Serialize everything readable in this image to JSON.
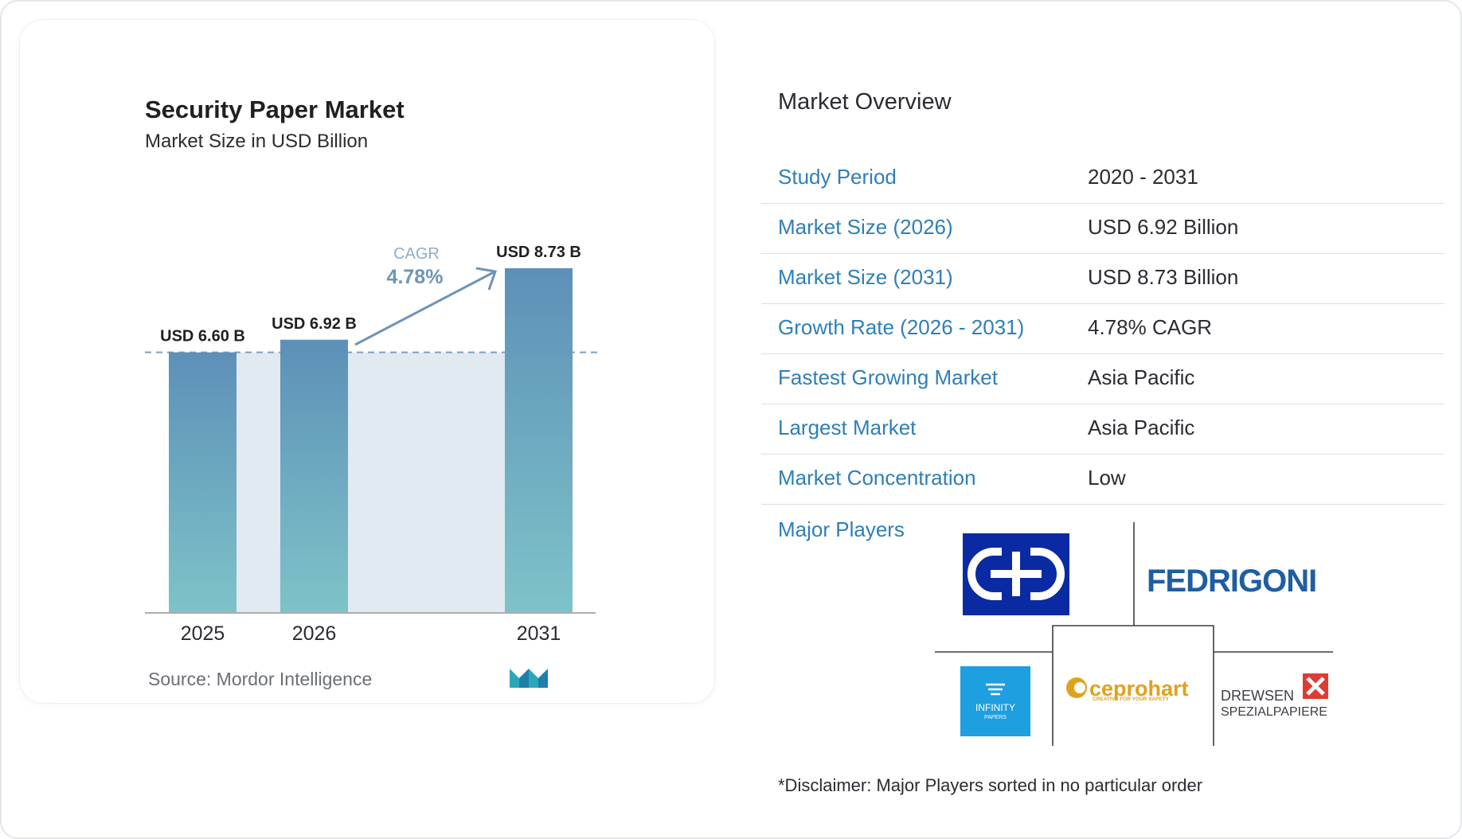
{
  "chart_data": {
    "type": "bar",
    "title": "Security Paper Market",
    "subtitle": "Market Size in USD Billion",
    "categories": [
      "2025",
      "2026",
      "2031"
    ],
    "values": [
      6.6,
      6.92,
      8.73
    ],
    "data_labels": [
      "USD 6.60 B",
      "USD 6.92 B",
      "USD 8.73 B"
    ],
    "ylim": [
      0,
      8.73
    ],
    "annotation": {
      "label": "CAGR",
      "value": "4.78%"
    },
    "grid": false,
    "bar_color_top": "#5d90b8",
    "bar_color_bottom": "#7ec3c8"
  },
  "source": "Source:  Mordor Intelligence",
  "overview": {
    "title": "Market Overview",
    "rows": [
      {
        "label": "Study Period",
        "value": "2020 - 2031"
      },
      {
        "label": "Market Size (2026)",
        "value": "USD 6.92 Billion"
      },
      {
        "label": "Market Size (2031)",
        "value": "USD 8.73 Billion"
      },
      {
        "label": "Growth Rate (2026 - 2031)",
        "value": "4.78% CAGR"
      },
      {
        "label": "Fastest Growing Market",
        "value": "Asia Pacific"
      },
      {
        "label": "Largest Market",
        "value": "Asia Pacific"
      },
      {
        "label": "Market Concentration",
        "value": "Low"
      }
    ],
    "players_label": "Major Players",
    "players": [
      "Giesecke+Devrient",
      "FEDRIGONI",
      "INFINITY PAPERS",
      "ceprohart",
      "DREWSEN SPEZIALPAPIERE"
    ],
    "disclaimer": "*Disclaimer: Major Players sorted in no particular order"
  },
  "logo_text": {
    "fedrigoni": "FEDRIGONI",
    "infinity": "INFINITY",
    "infinity_sub": "PAPERS",
    "ceprohart": "ceprohart",
    "ceprohart_tag": "CREATIVE FOR YOUR SAFETY",
    "drewsen": "DREWSEN",
    "drewsen_sub": "SPEZIALPAPIERE"
  },
  "colors": {
    "accent": "#2e7fb6",
    "brand_blue": "#0a2aa3"
  }
}
